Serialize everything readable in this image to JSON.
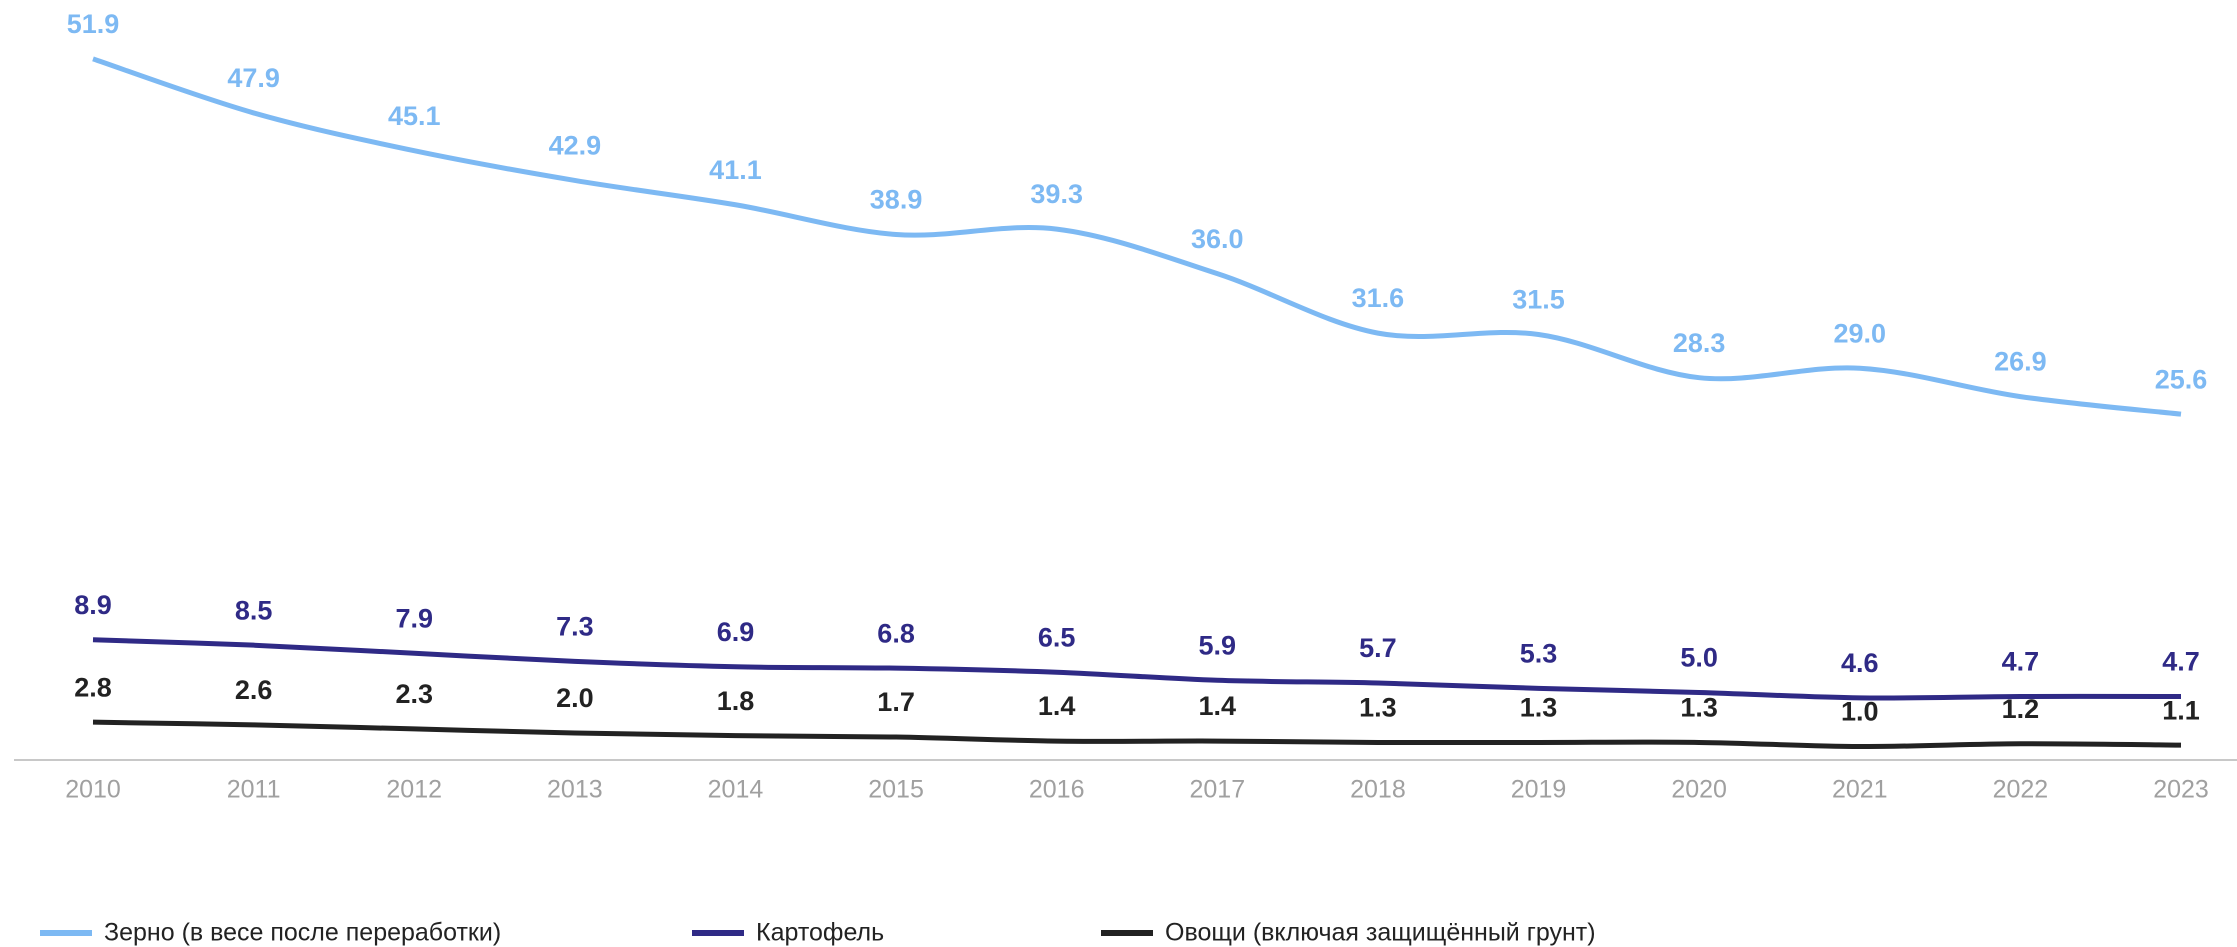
{
  "chart_data": {
    "type": "line",
    "categories": [
      "2010",
      "2011",
      "2012",
      "2013",
      "2014",
      "2015",
      "2016",
      "2017",
      "2018",
      "2019",
      "2020",
      "2021",
      "2022",
      "2023"
    ],
    "ylim": [
      0,
      55
    ],
    "legend": "bottom",
    "series": [
      {
        "name": "Зерно (в весе после переработки)",
        "color": "#7db9f3",
        "values": [
          51.9,
          47.9,
          45.1,
          42.9,
          41.1,
          38.9,
          39.3,
          36.0,
          31.6,
          31.5,
          28.3,
          29.0,
          26.9,
          25.6
        ],
        "value_labels": [
          "51.9",
          "47.9",
          "45.1",
          "42.9",
          "41.1",
          "38.9",
          "39.3",
          "36.0",
          "31.6",
          "31.5",
          "28.3",
          "29.0",
          "26.9",
          "25.6"
        ]
      },
      {
        "name": "Картофель",
        "color": "#2f2a86",
        "values": [
          8.9,
          8.5,
          7.9,
          7.3,
          6.9,
          6.8,
          6.5,
          5.9,
          5.7,
          5.3,
          5.0,
          4.6,
          4.7,
          4.7
        ],
        "value_labels": [
          "8.9",
          "8.5",
          "7.9",
          "7.3",
          "6.9",
          "6.8",
          "6.5",
          "5.9",
          "5.7",
          "5.3",
          "5.0",
          "4.6",
          "4.7",
          "4.7"
        ]
      },
      {
        "name": "Овощи (включая защищённый грунт)",
        "color": "#222222",
        "values": [
          2.8,
          2.6,
          2.3,
          2.0,
          1.8,
          1.7,
          1.4,
          1.4,
          1.3,
          1.3,
          1.3,
          1.0,
          1.2,
          1.1
        ],
        "value_labels": [
          "2.8",
          "2.6",
          "2.3",
          "2.0",
          "1.8",
          "1.7",
          "1.4",
          "1.4",
          "1.3",
          "1.3",
          "1.3",
          "1.0",
          "1.2",
          "1.1"
        ]
      }
    ]
  }
}
